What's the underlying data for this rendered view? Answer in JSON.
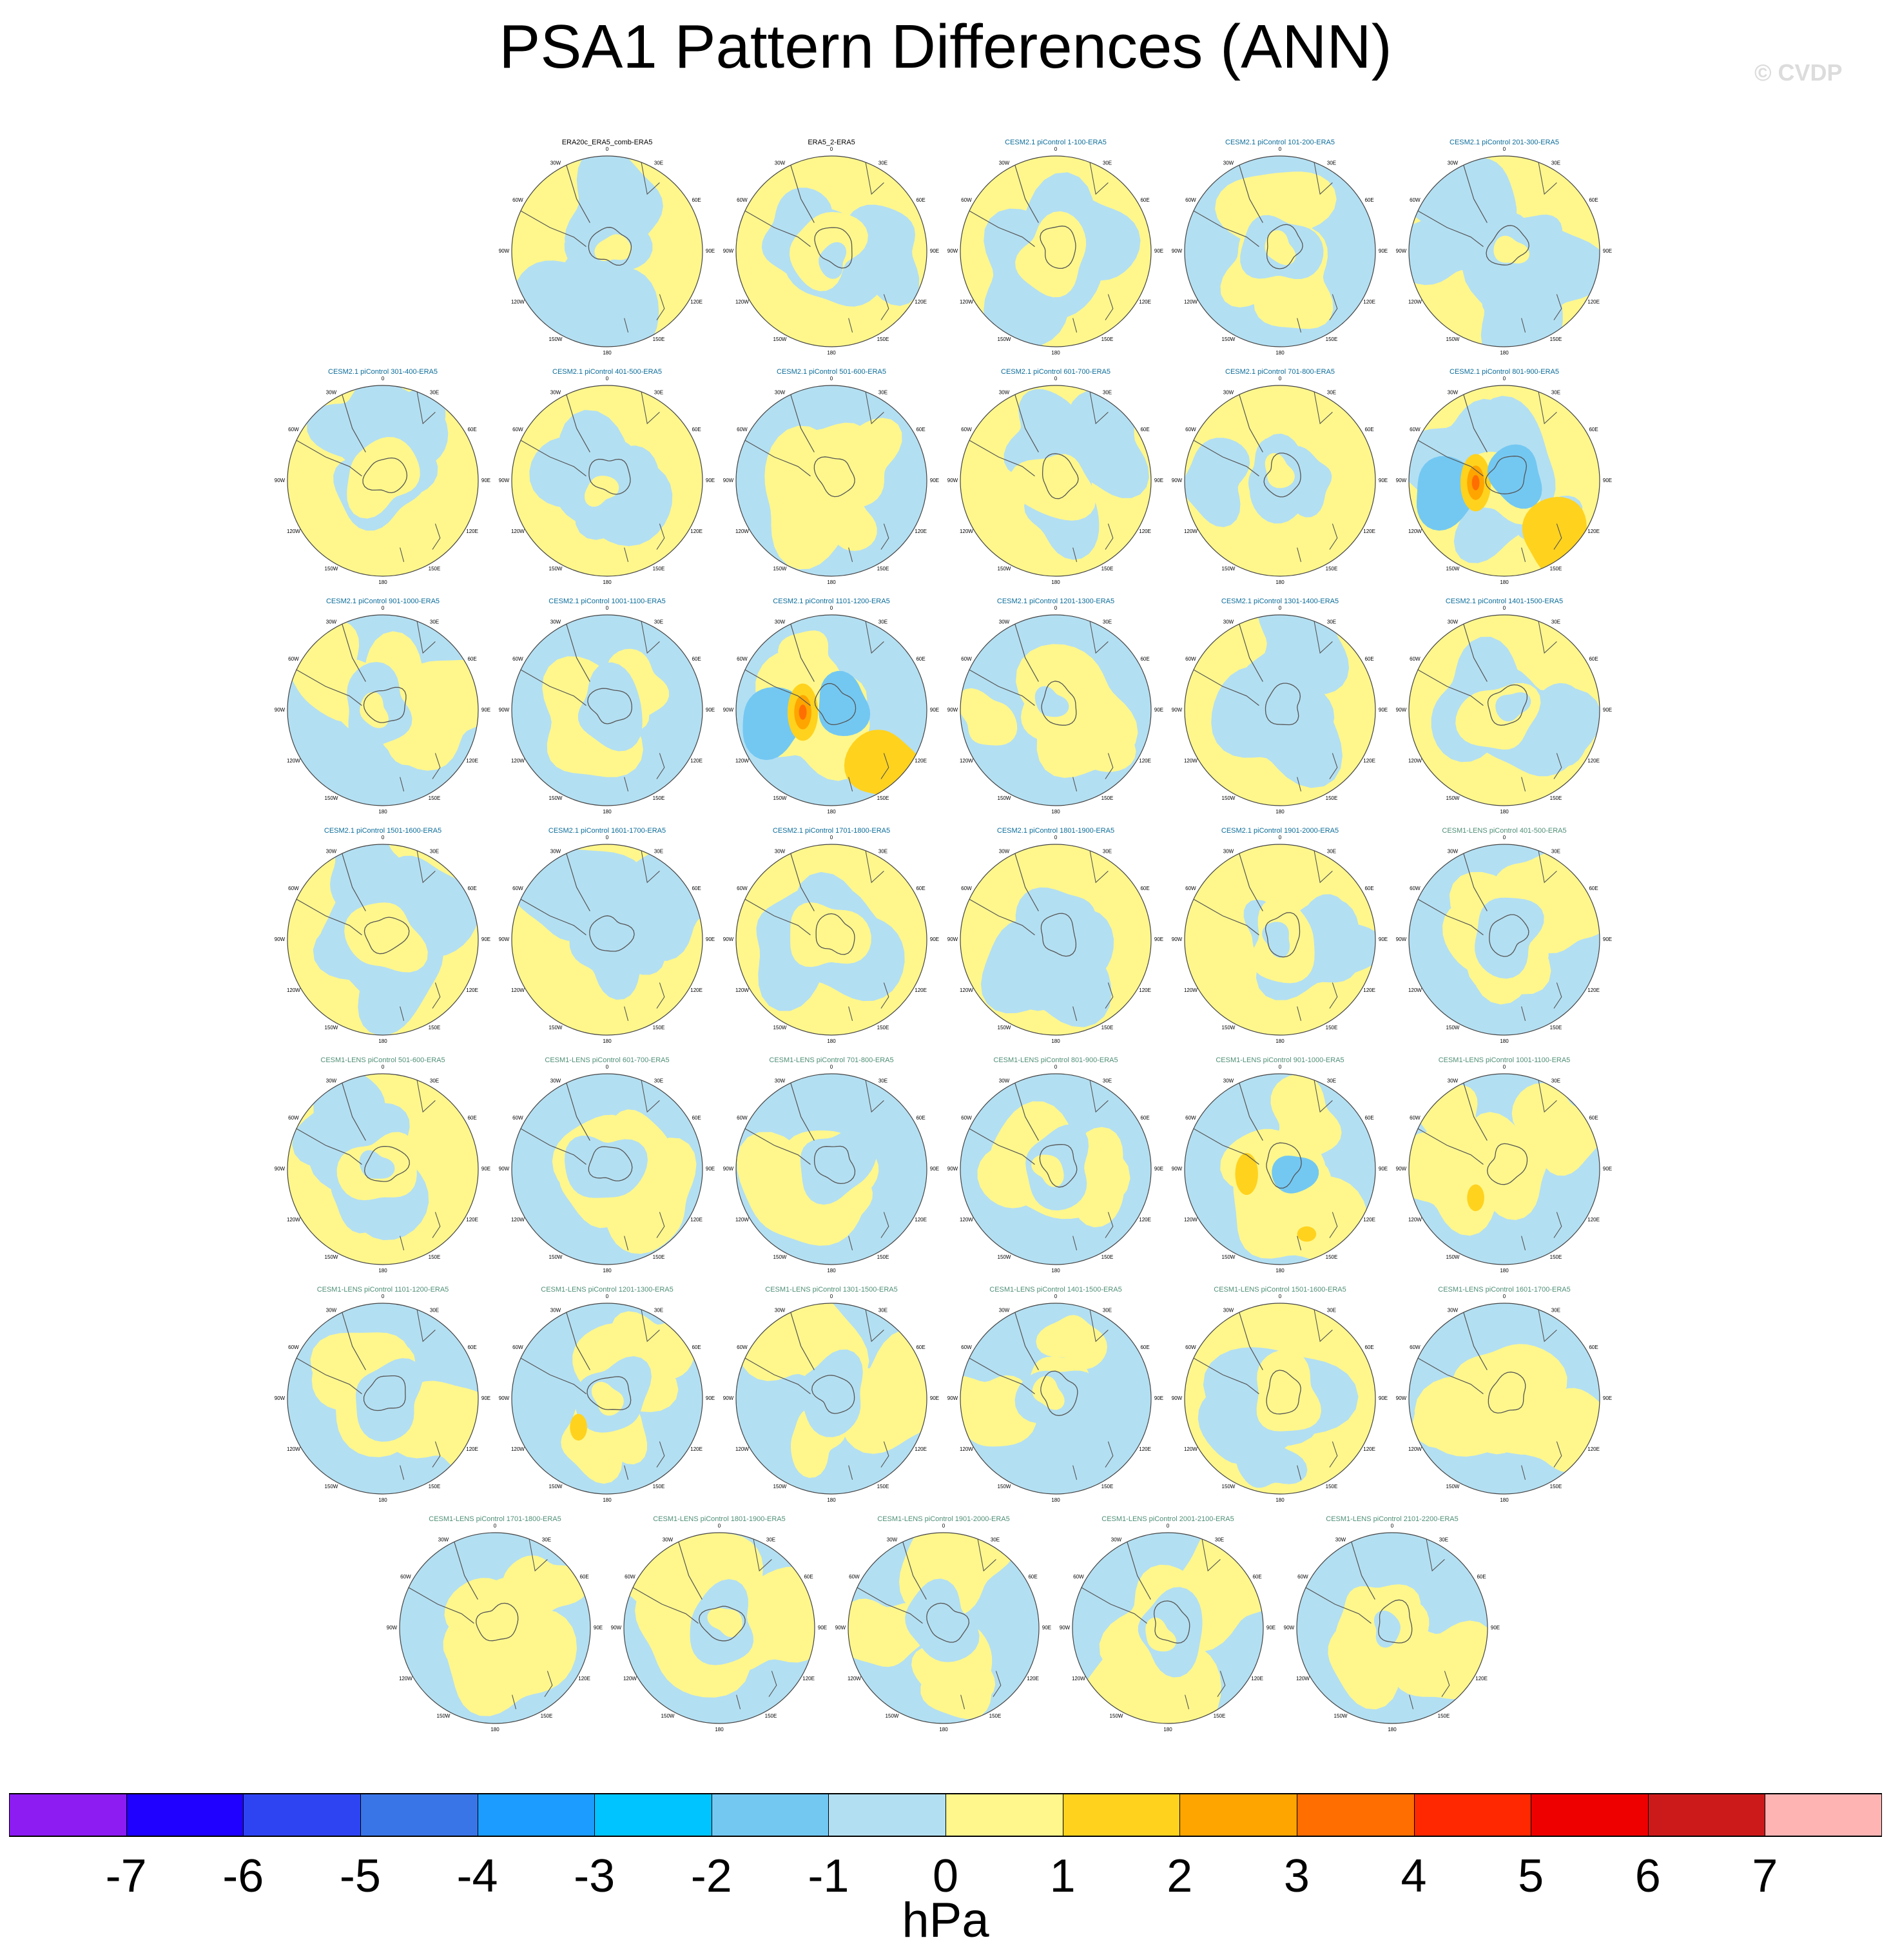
{
  "title": "PSA1 Pattern Differences (ANN)",
  "watermark": "© CVDP",
  "units": "hPa",
  "colors": {
    "neg_light": "#b3dff2",
    "neg_mid": "#73c8f2",
    "pos_light": "#fff78c",
    "pos_mid": "#ffd21e",
    "pos_strong": "#ffa500",
    "pos_stronger": "#ff6e00",
    "title_obs": "#000000",
    "title_cesm2": "#0c6d9a",
    "title_cesm1": "#4f8f76"
  },
  "colorbar": {
    "colors": [
      "#8c1cf2",
      "#2000ff",
      "#2e44f2",
      "#3a75e8",
      "#1c9cff",
      "#00c4ff",
      "#73c8f2",
      "#b3dff2",
      "#fff78c",
      "#ffd21e",
      "#ffa500",
      "#ff6e00",
      "#ff2800",
      "#ee0000",
      "#cc1a1a",
      "#ffb4b4"
    ],
    "labels": [
      "-7",
      "-6",
      "-5",
      "-4",
      "-3",
      "-2",
      "-1",
      "0",
      "1",
      "2",
      "3",
      "4",
      "5",
      "6",
      "7"
    ]
  },
  "lon_labels": [
    "0",
    "30E",
    "60E",
    "90E",
    "120E",
    "150E",
    "180",
    "150W",
    "120W",
    "90W",
    "60W",
    "30W"
  ],
  "panels": [
    {
      "title": "ERA20c_ERA5_comb-ERA5",
      "group": "obs",
      "pos": 0.8,
      "feature": "none",
      "seed": 1
    },
    {
      "title": "ERA5_2-ERA5",
      "group": "obs",
      "pos": 0.5,
      "feature": "none",
      "seed": 2
    },
    {
      "title": "CESM2.1 piControl 1-100-ERA5",
      "group": "cesm2",
      "pos": 0.6,
      "feature": "none",
      "seed": 3
    },
    {
      "title": "CESM2.1 piControl 101-200-ERA5",
      "group": "cesm2",
      "pos": 0.45,
      "feature": "none",
      "seed": 4
    },
    {
      "title": "CESM2.1 piControl 201-300-ERA5",
      "group": "cesm2",
      "pos": 0.5,
      "feature": "none",
      "seed": 5
    },
    {
      "title": "CESM2.1 piControl 301-400-ERA5",
      "group": "cesm2",
      "pos": 0.5,
      "feature": "none",
      "seed": 6
    },
    {
      "title": "CESM2.1 piControl 401-500-ERA5",
      "group": "cesm2",
      "pos": 0.5,
      "feature": "none",
      "seed": 7
    },
    {
      "title": "CESM2.1 piControl 501-600-ERA5",
      "group": "cesm2",
      "pos": 0.4,
      "feature": "none",
      "seed": 8
    },
    {
      "title": "CESM2.1 piControl 601-700-ERA5",
      "group": "cesm2",
      "pos": 0.6,
      "feature": "none",
      "seed": 9
    },
    {
      "title": "CESM2.1 piControl 701-800-ERA5",
      "group": "cesm2",
      "pos": 0.55,
      "feature": "none",
      "seed": 10
    },
    {
      "title": "CESM2.1 piControl 801-900-ERA5",
      "group": "cesm2",
      "pos": 0.55,
      "feature": "strong",
      "seed": 11
    },
    {
      "title": "CESM2.1 piControl 901-1000-ERA5",
      "group": "cesm2",
      "pos": 0.45,
      "feature": "none",
      "seed": 12
    },
    {
      "title": "CESM2.1 piControl 1001-1100-ERA5",
      "group": "cesm2",
      "pos": 0.4,
      "feature": "none",
      "seed": 13
    },
    {
      "title": "CESM2.1 piControl 1101-1200-ERA5",
      "group": "cesm2",
      "pos": 0.35,
      "feature": "strong",
      "seed": 14
    },
    {
      "title": "CESM2.1 piControl 1201-1300-ERA5",
      "group": "cesm2",
      "pos": 0.4,
      "feature": "none",
      "seed": 15
    },
    {
      "title": "CESM2.1 piControl 1301-1400-ERA5",
      "group": "cesm2",
      "pos": 0.5,
      "feature": "none",
      "seed": 16
    },
    {
      "title": "CESM2.1 piControl 1401-1500-ERA5",
      "group": "cesm2",
      "pos": 0.5,
      "feature": "none",
      "seed": 17
    },
    {
      "title": "CESM2.1 piControl 1501-1600-ERA5",
      "group": "cesm2",
      "pos": 0.55,
      "feature": "none",
      "seed": 18
    },
    {
      "title": "CESM2.1 piControl 1601-1700-ERA5",
      "group": "cesm2",
      "pos": 0.6,
      "feature": "none",
      "seed": 19
    },
    {
      "title": "CESM2.1 piControl 1701-1800-ERA5",
      "group": "cesm2",
      "pos": 0.55,
      "feature": "none",
      "seed": 20
    },
    {
      "title": "CESM2.1 piControl 1801-1900-ERA5",
      "group": "cesm2",
      "pos": 0.5,
      "feature": "none",
      "seed": 21
    },
    {
      "title": "CESM2.1 piControl 1901-2000-ERA5",
      "group": "cesm2",
      "pos": 0.6,
      "feature": "none",
      "seed": 22
    },
    {
      "title": "CESM1-LENS piControl 401-500-ERA5",
      "group": "cesm1",
      "pos": 0.4,
      "feature": "none",
      "seed": 23
    },
    {
      "title": "CESM1-LENS piControl 501-600-ERA5",
      "group": "cesm1",
      "pos": 0.5,
      "feature": "none",
      "seed": 24
    },
    {
      "title": "CESM1-LENS piControl 601-700-ERA5",
      "group": "cesm1",
      "pos": 0.45,
      "feature": "none",
      "seed": 25
    },
    {
      "title": "CESM1-LENS piControl 701-800-ERA5",
      "group": "cesm1",
      "pos": 0.4,
      "feature": "none",
      "seed": 26
    },
    {
      "title": "CESM1-LENS piControl 801-900-ERA5",
      "group": "cesm1",
      "pos": 0.45,
      "feature": "none",
      "seed": 27
    },
    {
      "title": "CESM1-LENS piControl 901-1000-ERA5",
      "group": "cesm1",
      "pos": 0.45,
      "feature": "moderate",
      "seed": 28
    },
    {
      "title": "CESM1-LENS piControl 1001-1100-ERA5",
      "group": "cesm1",
      "pos": 0.45,
      "feature": "weak",
      "seed": 29
    },
    {
      "title": "CESM1-LENS piControl 1101-1200-ERA5",
      "group": "cesm1",
      "pos": 0.45,
      "feature": "none",
      "seed": 30
    },
    {
      "title": "CESM1-LENS piControl 1201-1300-ERA5",
      "group": "cesm1",
      "pos": 0.45,
      "feature": "weak",
      "seed": 31
    },
    {
      "title": "CESM1-LENS piControl 1301-1500-ERA5",
      "group": "cesm1",
      "pos": 0.4,
      "feature": "none",
      "seed": 32
    },
    {
      "title": "CESM1-LENS piControl 1401-1500-ERA5",
      "group": "cesm1",
      "pos": 0.4,
      "feature": "none",
      "seed": 33
    },
    {
      "title": "CESM1-LENS piControl 1501-1600-ERA5",
      "group": "cesm1",
      "pos": 0.5,
      "feature": "none",
      "seed": 34
    },
    {
      "title": "CESM1-LENS piControl 1601-1700-ERA5",
      "group": "cesm1",
      "pos": 0.45,
      "feature": "none",
      "seed": 35
    },
    {
      "title": "CESM1-LENS piControl 1701-1800-ERA5",
      "group": "cesm1",
      "pos": 0.4,
      "feature": "none",
      "seed": 36
    },
    {
      "title": "CESM1-LENS piControl 1801-1900-ERA5",
      "group": "cesm1",
      "pos": 0.45,
      "feature": "none",
      "seed": 37
    },
    {
      "title": "CESM1-LENS piControl 1901-2000-ERA5",
      "group": "cesm1",
      "pos": 0.45,
      "feature": "none",
      "seed": 38
    },
    {
      "title": "CESM1-LENS piControl 2001-2100-ERA5",
      "group": "cesm1",
      "pos": 0.4,
      "feature": "none",
      "seed": 39
    },
    {
      "title": "CESM1-LENS piControl 2101-2200-ERA5",
      "group": "cesm1",
      "pos": 0.4,
      "feature": "none",
      "seed": 40
    }
  ]
}
